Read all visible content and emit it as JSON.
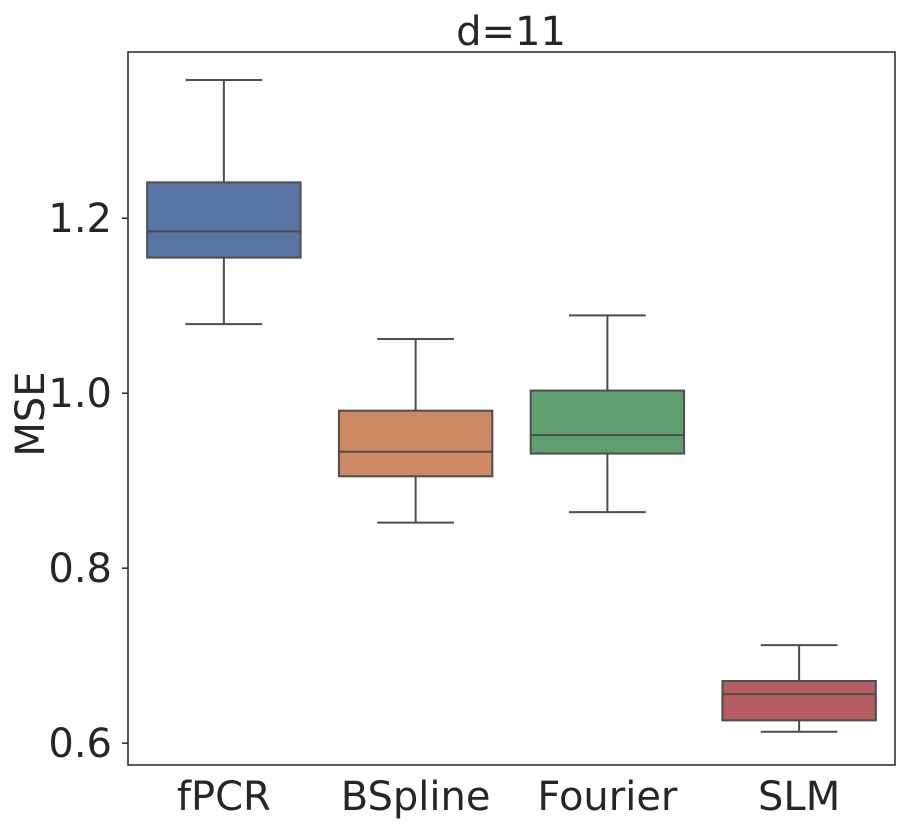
{
  "chart_data": {
    "type": "box",
    "title": "d=11",
    "xlabel": "",
    "ylabel": "MSE",
    "ylim": [
      0.575,
      1.39
    ],
    "yticks": [
      "0.6",
      "0.8",
      "1.0",
      "1.2"
    ],
    "grid": false,
    "categories": [
      "fPCR",
      "BSpline",
      "Fourier",
      "SLM"
    ],
    "boxes": [
      {
        "category": "fPCR",
        "whisker_low": 1.079,
        "q1": 1.155,
        "median": 1.185,
        "q3": 1.241,
        "whisker_high": 1.358,
        "color": "#5875a4"
      },
      {
        "category": "BSpline",
        "whisker_low": 0.852,
        "q1": 0.905,
        "median": 0.933,
        "q3": 0.98,
        "whisker_high": 1.062,
        "color": "#cc8963"
      },
      {
        "category": "Fourier",
        "whisker_low": 0.864,
        "q1": 0.931,
        "median": 0.952,
        "q3": 1.003,
        "whisker_high": 1.089,
        "color": "#5f9e6e"
      },
      {
        "category": "SLM",
        "whisker_low": 0.613,
        "q1": 0.626,
        "median": 0.656,
        "q3": 0.671,
        "whisker_high": 0.712,
        "color": "#b55d60"
      }
    ]
  }
}
